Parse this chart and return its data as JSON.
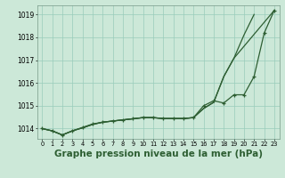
{
  "bg_color": "#cce8d8",
  "grid_color": "#99ccbb",
  "line_color": "#2d5e32",
  "title": "Graphe pression niveau de la mer (hPa)",
  "title_fontsize": 7.5,
  "ylabel_ticks": [
    1014,
    1015,
    1016,
    1017,
    1018,
    1019
  ],
  "xlim": [
    -0.5,
    23.5
  ],
  "ylim": [
    1013.55,
    1019.4
  ],
  "x": [
    0,
    1,
    2,
    3,
    4,
    5,
    6,
    7,
    8,
    9,
    10,
    11,
    12,
    13,
    14,
    15,
    16,
    17,
    18,
    19,
    20,
    21,
    22,
    23
  ],
  "line1_x": [
    0,
    1,
    2,
    3,
    4,
    5,
    6,
    7,
    8,
    9,
    10,
    11,
    12,
    13,
    14,
    15,
    16,
    17,
    18,
    19,
    20,
    21
  ],
  "line1_y": [
    1014.0,
    1013.9,
    1013.72,
    1013.9,
    1014.03,
    1014.18,
    1014.28,
    1014.33,
    1014.38,
    1014.43,
    1014.48,
    1014.48,
    1014.44,
    1014.44,
    1014.44,
    1014.48,
    1014.88,
    1015.15,
    1016.28,
    1017.08,
    1018.1,
    1019.0
  ],
  "line2_x": [
    0,
    1,
    2,
    3,
    4,
    5,
    6,
    7,
    8,
    9,
    10,
    11,
    12,
    13,
    14,
    15,
    16,
    17,
    18,
    19,
    23
  ],
  "line2_y": [
    1014.0,
    1013.9,
    1013.72,
    1013.9,
    1014.03,
    1014.18,
    1014.28,
    1014.33,
    1014.38,
    1014.43,
    1014.48,
    1014.48,
    1014.44,
    1014.44,
    1014.44,
    1014.48,
    1014.88,
    1015.15,
    1016.28,
    1017.08,
    1019.18
  ],
  "line3_x": [
    0,
    1,
    2,
    3,
    4,
    5,
    6,
    7,
    8,
    9,
    10,
    11,
    12,
    13,
    14,
    15,
    16,
    17,
    18,
    19,
    20,
    21,
    22,
    23
  ],
  "line3_y": [
    1014.0,
    1013.9,
    1013.72,
    1013.9,
    1014.05,
    1014.2,
    1014.28,
    1014.33,
    1014.38,
    1014.43,
    1014.48,
    1014.48,
    1014.44,
    1014.44,
    1014.44,
    1014.48,
    1015.0,
    1015.22,
    1015.12,
    1015.48,
    1015.48,
    1016.28,
    1018.18,
    1019.18
  ]
}
